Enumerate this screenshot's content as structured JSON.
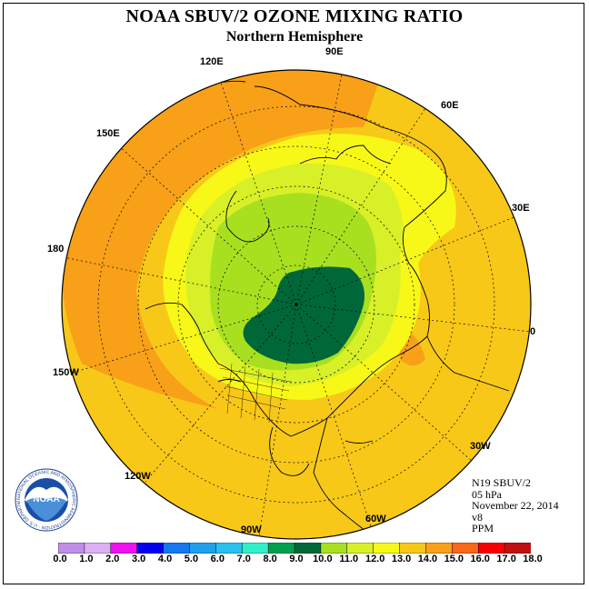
{
  "title": "NOAA SBUV/2 OZONE MIXING RATIO",
  "subtitle": "Northern Hemisphere",
  "longitude_labels": [
    "90E",
    "60E",
    "30E",
    "0",
    "30W",
    "60W",
    "90W",
    "120W",
    "150W",
    "180",
    "150E",
    "120E"
  ],
  "info": {
    "satellite": "N19 SBUV/2",
    "pressure": "05 hPa",
    "date": "November 22, 2014",
    "version": "v8",
    "units": "PPM"
  },
  "logo": {
    "text": "NOAA",
    "ring_text": "NATIONAL OCEANIC AND ATMOSPHERIC ADMINISTRATION · U.S. DEPARTMENT OF COMMERCE"
  },
  "colorbar": {
    "tick_labels": [
      "0.0",
      "1.0",
      "2.0",
      "3.0",
      "4.0",
      "5.0",
      "6.0",
      "7.0",
      "8.0",
      "9.0",
      "10.0",
      "11.0",
      "12.0",
      "13.0",
      "14.0",
      "15.0",
      "16.0",
      "17.0",
      "18.0"
    ],
    "colors": [
      "#c08ee8",
      "#dcb0f4",
      "#ee10ee",
      "#0000ee",
      "#1478ee",
      "#1ea0ee",
      "#28c0ee",
      "#30f0c8",
      "#00a050",
      "#006838",
      "#a8e020",
      "#d8f028",
      "#f8f818",
      "#f8c818",
      "#f8a018",
      "#f86818",
      "#f80000",
      "#c01010",
      "#8c5a3c"
    ]
  },
  "chart_data": {
    "type": "heatmap",
    "title": "NOAA SBUV/2 OZONE MIXING RATIO",
    "subtitle": "Northern Hemisphere",
    "units": "PPM",
    "projection": "north polar stereographic",
    "value_range": [
      0.0,
      18.0
    ],
    "field_summary": {
      "polar_core": "9.0-10.0",
      "inner_ring": "10.0-12.0",
      "middle_ring": "12.0-13.0",
      "outer_region": "13.0-14.0",
      "maximum_pacific": "14.0-15.0"
    }
  }
}
